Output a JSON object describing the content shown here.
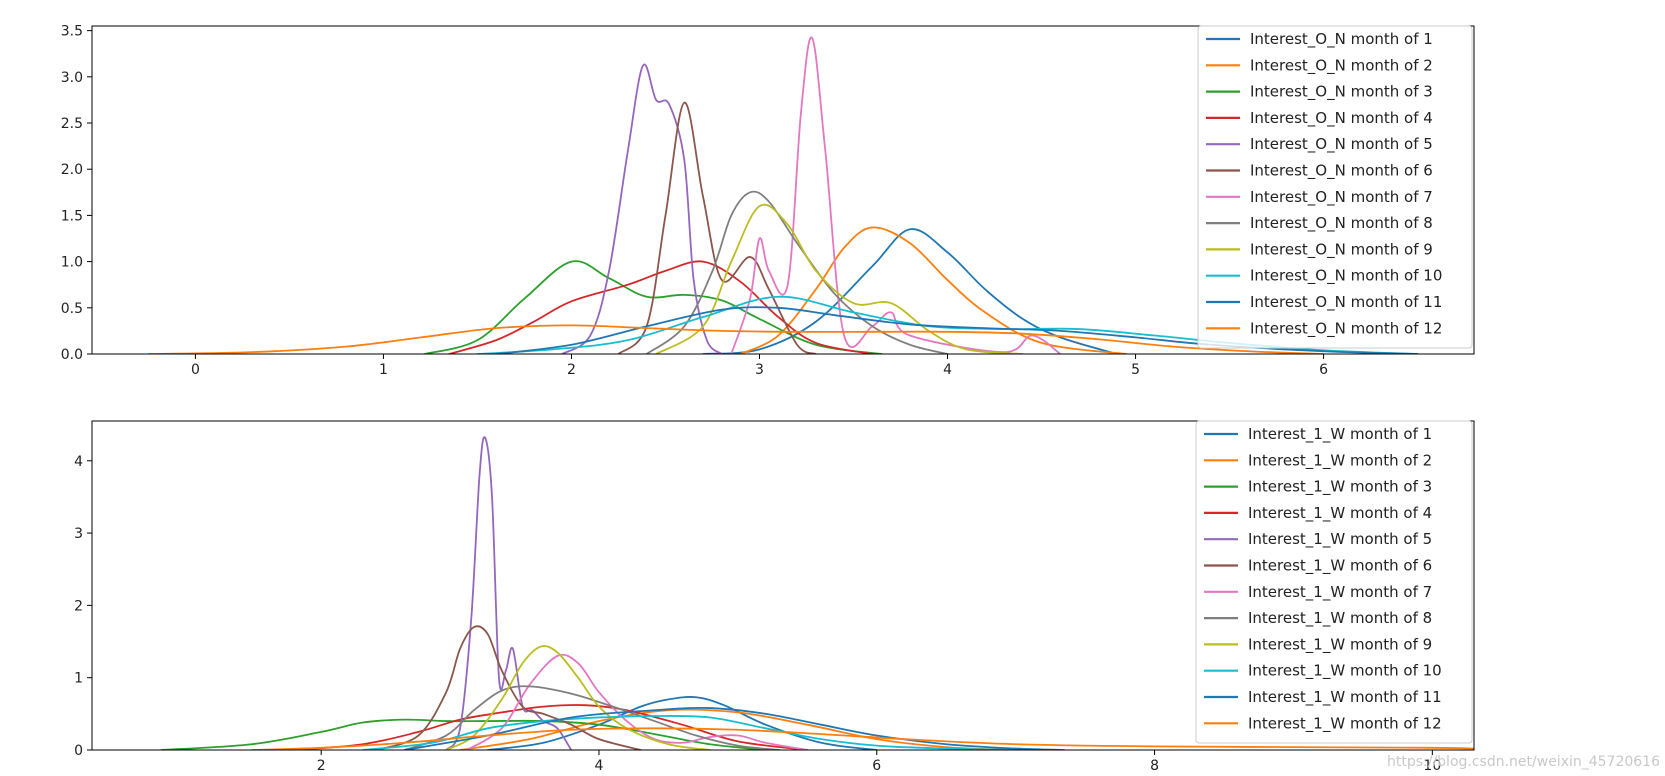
{
  "watermark": "https://blog.csdn.net/weixin_45720616",
  "chart_data": [
    {
      "type": "line",
      "title": "",
      "xlabel": "",
      "ylabel": "",
      "xlim": [
        -0.55,
        6.8
      ],
      "ylim": [
        0,
        3.55
      ],
      "xticks": [
        0,
        1,
        2,
        3,
        4,
        5,
        6
      ],
      "yticks": [
        0.0,
        0.5,
        1.0,
        1.5,
        2.0,
        2.5,
        3.0,
        3.5
      ],
      "xtick_labels": [
        "0",
        "1",
        "2",
        "3",
        "4",
        "5",
        "6"
      ],
      "ytick_labels": [
        "0.0",
        "0.5",
        "1.0",
        "1.5",
        "2.0",
        "2.5",
        "3.0",
        "3.5"
      ],
      "grid": false,
      "legend_position": "top-right",
      "series": [
        {
          "name": "Interest_O_N month of 1",
          "color": "#1f77b4",
          "x": [
            2.7,
            3.0,
            3.3,
            3.6,
            3.8,
            4.0,
            4.2,
            4.4,
            4.6,
            4.9
          ],
          "y": [
            0.0,
            0.05,
            0.35,
            0.95,
            1.35,
            1.1,
            0.7,
            0.38,
            0.18,
            0.0
          ]
        },
        {
          "name": "Interest_O_N month of 2",
          "color": "#ff7f0e",
          "x": [
            2.9,
            3.1,
            3.3,
            3.45,
            3.6,
            3.8,
            4.0,
            4.2,
            4.5,
            4.95
          ],
          "y": [
            0.0,
            0.2,
            0.7,
            1.15,
            1.37,
            1.2,
            0.8,
            0.45,
            0.12,
            0.0
          ]
        },
        {
          "name": "Interest_O_N month of 3",
          "color": "#2ca02c",
          "x": [
            1.22,
            1.5,
            1.75,
            2.0,
            2.2,
            2.4,
            2.6,
            2.8,
            3.0,
            3.3,
            3.65
          ],
          "y": [
            0.0,
            0.15,
            0.6,
            1.0,
            0.82,
            0.62,
            0.64,
            0.58,
            0.38,
            0.1,
            0.0
          ]
        },
        {
          "name": "Interest_O_N month of 4",
          "color": "#d62728",
          "x": [
            1.35,
            1.6,
            1.8,
            2.0,
            2.3,
            2.5,
            2.7,
            2.9,
            3.1,
            3.3,
            3.6
          ],
          "y": [
            0.0,
            0.15,
            0.35,
            0.57,
            0.75,
            0.9,
            1.0,
            0.78,
            0.4,
            0.12,
            0.0
          ]
        },
        {
          "name": "Interest_O_N month of 5",
          "color": "#9467bd",
          "x": [
            1.95,
            2.1,
            2.2,
            2.3,
            2.38,
            2.45,
            2.52,
            2.6,
            2.65,
            2.72,
            2.8
          ],
          "y": [
            0.0,
            0.2,
            0.9,
            2.2,
            3.12,
            2.75,
            2.7,
            2.1,
            0.8,
            0.15,
            0.0
          ]
        },
        {
          "name": "Interest_O_N month of 6",
          "color": "#8c564b",
          "x": [
            2.25,
            2.4,
            2.5,
            2.6,
            2.7,
            2.8,
            2.95,
            3.05,
            3.2,
            3.3
          ],
          "y": [
            0.0,
            0.3,
            1.5,
            2.72,
            1.7,
            0.8,
            1.05,
            0.7,
            0.1,
            0.0
          ]
        },
        {
          "name": "Interest_O_N month of 7",
          "color": "#e377c2",
          "x": [
            2.85,
            2.95,
            3.0,
            3.05,
            3.15,
            3.22,
            3.28,
            3.35,
            3.45,
            3.6,
            3.7,
            3.8,
            4.3,
            4.45,
            4.6
          ],
          "y": [
            0.0,
            0.6,
            1.25,
            0.9,
            0.75,
            2.6,
            3.42,
            2.2,
            0.2,
            0.3,
            0.45,
            0.2,
            0.02,
            0.2,
            0.0
          ]
        },
        {
          "name": "Interest_O_N month of 8",
          "color": "#7f7f7f",
          "x": [
            2.4,
            2.6,
            2.75,
            2.85,
            2.95,
            3.05,
            3.2,
            3.4,
            3.6,
            3.8,
            4.0
          ],
          "y": [
            0.0,
            0.3,
            0.9,
            1.5,
            1.75,
            1.65,
            1.2,
            0.65,
            0.3,
            0.1,
            0.0
          ]
        },
        {
          "name": "Interest_O_N month of 9",
          "color": "#bcbd22",
          "x": [
            2.45,
            2.7,
            2.85,
            3.0,
            3.15,
            3.3,
            3.5,
            3.7,
            3.9,
            4.1,
            4.4
          ],
          "y": [
            0.0,
            0.3,
            1.0,
            1.6,
            1.4,
            0.9,
            0.55,
            0.55,
            0.25,
            0.05,
            0.0
          ]
        },
        {
          "name": "Interest_O_N month of 10",
          "color": "#17becf",
          "x": [
            1.5,
            1.9,
            2.3,
            2.7,
            3.1,
            3.5,
            3.9,
            4.3,
            4.7,
            5.1,
            5.5,
            6.0,
            6.5
          ],
          "y": [
            0.0,
            0.05,
            0.15,
            0.4,
            0.62,
            0.45,
            0.3,
            0.27,
            0.27,
            0.2,
            0.12,
            0.04,
            0.0
          ]
        },
        {
          "name": "Interest_O_N month of 11",
          "color": "#1f77b4",
          "x": [
            1.6,
            2.0,
            2.4,
            2.8,
            3.1,
            3.4,
            3.8,
            4.2,
            4.6,
            5.0,
            5.4,
            6.0,
            6.5
          ],
          "y": [
            0.0,
            0.1,
            0.3,
            0.48,
            0.5,
            0.42,
            0.32,
            0.28,
            0.25,
            0.18,
            0.1,
            0.03,
            0.0
          ]
        },
        {
          "name": "Interest_O_N month of 12",
          "color": "#ff7f0e",
          "x": [
            -0.25,
            0.3,
            0.8,
            1.2,
            1.6,
            2.0,
            2.4,
            2.8,
            3.2,
            3.6,
            4.0,
            4.4,
            4.8,
            5.2,
            5.6,
            6.0
          ],
          "y": [
            0.0,
            0.02,
            0.08,
            0.18,
            0.28,
            0.31,
            0.28,
            0.25,
            0.24,
            0.24,
            0.24,
            0.22,
            0.16,
            0.08,
            0.03,
            0.0
          ]
        }
      ]
    },
    {
      "type": "line",
      "title": "",
      "xlabel": "",
      "ylabel": "",
      "xlim": [
        0.35,
        10.3
      ],
      "ylim": [
        0,
        4.55
      ],
      "xticks": [
        2,
        4,
        6,
        8,
        10
      ],
      "yticks": [
        0,
        1,
        2,
        3,
        4
      ],
      "xtick_labels": [
        "2",
        "4",
        "6",
        "8",
        "10"
      ],
      "ytick_labels": [
        "0",
        "1",
        "2",
        "3",
        "4"
      ],
      "grid": false,
      "legend_position": "top-right",
      "series": [
        {
          "name": "Interest_1_W month of 1",
          "color": "#1f77b4",
          "x": [
            3.2,
            3.6,
            4.0,
            4.3,
            4.5,
            4.7,
            4.9,
            5.2,
            5.6,
            6.0
          ],
          "y": [
            0.0,
            0.1,
            0.35,
            0.6,
            0.7,
            0.73,
            0.62,
            0.35,
            0.1,
            0.0
          ]
        },
        {
          "name": "Interest_1_W month of 2",
          "color": "#ff7f0e",
          "x": [
            3.0,
            3.5,
            4.0,
            4.5,
            5.0,
            5.5,
            6.0,
            6.5,
            7.0
          ],
          "y": [
            0.0,
            0.15,
            0.4,
            0.55,
            0.52,
            0.35,
            0.15,
            0.04,
            0.0
          ]
        },
        {
          "name": "Interest_1_W month of 3",
          "color": "#2ca02c",
          "x": [
            0.85,
            1.5,
            2.0,
            2.3,
            2.6,
            2.9,
            3.2,
            3.6,
            4.0,
            4.4,
            4.8,
            5.2
          ],
          "y": [
            0.0,
            0.08,
            0.25,
            0.38,
            0.42,
            0.4,
            0.4,
            0.4,
            0.35,
            0.22,
            0.08,
            0.0
          ]
        },
        {
          "name": "Interest_1_W month of 4",
          "color": "#d62728",
          "x": [
            1.8,
            2.3,
            2.7,
            3.0,
            3.3,
            3.6,
            3.9,
            4.2,
            4.6,
            5.0,
            5.5
          ],
          "y": [
            0.0,
            0.08,
            0.25,
            0.42,
            0.52,
            0.6,
            0.62,
            0.55,
            0.35,
            0.12,
            0.0
          ]
        },
        {
          "name": "Interest_1_W month of 5",
          "color": "#9467bd",
          "x": [
            2.9,
            3.0,
            3.08,
            3.14,
            3.18,
            3.23,
            3.28,
            3.33,
            3.38,
            3.45,
            3.52,
            3.6,
            3.7,
            3.8
          ],
          "y": [
            0.0,
            0.3,
            1.8,
            3.8,
            4.32,
            3.5,
            1.0,
            1.1,
            1.4,
            0.6,
            0.55,
            0.4,
            0.3,
            0.0
          ]
        },
        {
          "name": "Interest_1_W month of 6",
          "color": "#8c564b",
          "x": [
            2.4,
            2.7,
            2.9,
            3.0,
            3.1,
            3.2,
            3.3,
            3.45,
            3.6,
            3.8,
            4.0,
            4.3
          ],
          "y": [
            0.0,
            0.2,
            0.8,
            1.4,
            1.7,
            1.6,
            1.1,
            0.6,
            0.5,
            0.35,
            0.15,
            0.0
          ]
        },
        {
          "name": "Interest_1_W month of 7",
          "color": "#e377c2",
          "x": [
            3.05,
            3.3,
            3.5,
            3.7,
            3.85,
            4.0,
            4.2,
            4.4,
            4.6,
            4.8,
            5.0,
            5.2,
            5.5
          ],
          "y": [
            0.0,
            0.3,
            0.9,
            1.3,
            1.2,
            0.8,
            0.4,
            0.15,
            0.1,
            0.18,
            0.2,
            0.1,
            0.0
          ]
        },
        {
          "name": "Interest_1_W month of 8",
          "color": "#7f7f7f",
          "x": [
            2.6,
            2.9,
            3.1,
            3.3,
            3.5,
            3.8,
            4.1,
            4.4,
            4.7,
            5.0,
            5.3
          ],
          "y": [
            0.0,
            0.2,
            0.55,
            0.82,
            0.88,
            0.78,
            0.6,
            0.4,
            0.2,
            0.06,
            0.0
          ]
        },
        {
          "name": "Interest_1_W month of 9",
          "color": "#bcbd22",
          "x": [
            2.9,
            3.1,
            3.3,
            3.45,
            3.58,
            3.7,
            3.85,
            4.0,
            4.2,
            4.5,
            4.8
          ],
          "y": [
            0.0,
            0.2,
            0.7,
            1.2,
            1.43,
            1.35,
            1.0,
            0.6,
            0.3,
            0.08,
            0.0
          ]
        },
        {
          "name": "Interest_1_W month of 10",
          "color": "#17becf",
          "x": [
            2.3,
            2.8,
            3.2,
            3.6,
            4.0,
            4.4,
            4.8,
            5.2,
            5.6,
            6.0,
            6.5,
            7.0
          ],
          "y": [
            0.0,
            0.1,
            0.3,
            0.4,
            0.45,
            0.47,
            0.45,
            0.3,
            0.15,
            0.06,
            0.02,
            0.0
          ]
        },
        {
          "name": "Interest_1_W month of 11",
          "color": "#1f77b4",
          "x": [
            2.6,
            3.2,
            3.8,
            4.4,
            4.8,
            5.2,
            5.6,
            6.0,
            6.5,
            7.0,
            7.35
          ],
          "y": [
            0.0,
            0.2,
            0.45,
            0.55,
            0.58,
            0.5,
            0.35,
            0.2,
            0.08,
            0.02,
            0.0
          ]
        },
        {
          "name": "Interest_1_W month of 12",
          "color": "#ff7f0e",
          "x": [
            1.5,
            2.0,
            2.6,
            3.2,
            3.8,
            4.4,
            5.0,
            5.6,
            6.2,
            7.0,
            8.0,
            9.0,
            10.0,
            10.3
          ],
          "y": [
            0.0,
            0.03,
            0.1,
            0.2,
            0.28,
            0.3,
            0.28,
            0.22,
            0.15,
            0.08,
            0.05,
            0.04,
            0.03,
            0.02
          ]
        }
      ]
    }
  ]
}
